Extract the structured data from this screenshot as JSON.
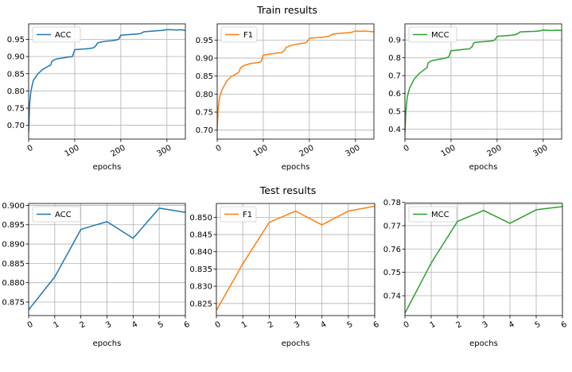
{
  "titles": {
    "train": "Train results",
    "test": "Test results"
  },
  "chart_data": [
    {
      "name": "train-acc",
      "type": "line",
      "series_name": "ACC",
      "color": "#1f77b4",
      "xlabel": "epochs",
      "xlim": [
        0,
        340
      ],
      "ylim": [
        0.66,
        0.995
      ],
      "xticks": [
        0,
        100,
        200,
        300
      ],
      "yticks": [
        0.7,
        0.75,
        0.8,
        0.85,
        0.9,
        0.95
      ],
      "ytick_labels": [
        "0.70",
        "0.75",
        "0.80",
        "0.85",
        "0.90",
        "0.95"
      ],
      "xtick_rotated": true,
      "x": [
        0,
        2,
        5,
        10,
        20,
        30,
        40,
        48,
        50,
        55,
        60,
        70,
        80,
        90,
        95,
        100,
        110,
        120,
        130,
        140,
        145,
        150,
        160,
        170,
        180,
        190,
        195,
        200,
        210,
        220,
        230,
        240,
        245,
        250,
        260,
        270,
        280,
        290,
        295,
        300,
        310,
        320,
        330,
        340
      ],
      "values": [
        0.68,
        0.76,
        0.8,
        0.83,
        0.85,
        0.862,
        0.87,
        0.875,
        0.885,
        0.89,
        0.893,
        0.895,
        0.897,
        0.899,
        0.9,
        0.92,
        0.921,
        0.922,
        0.923,
        0.925,
        0.93,
        0.94,
        0.943,
        0.945,
        0.946,
        0.948,
        0.95,
        0.962,
        0.963,
        0.964,
        0.965,
        0.966,
        0.968,
        0.972,
        0.973,
        0.974,
        0.975,
        0.976,
        0.977,
        0.978,
        0.978,
        0.977,
        0.978,
        0.976
      ]
    },
    {
      "name": "train-f1",
      "type": "line",
      "series_name": "F1",
      "color": "#ff7f0e",
      "xlabel": "epochs",
      "xlim": [
        0,
        340
      ],
      "ylim": [
        0.675,
        0.995
      ],
      "xticks": [
        0,
        100,
        200,
        300
      ],
      "yticks": [
        0.7,
        0.75,
        0.8,
        0.85,
        0.9,
        0.95
      ],
      "ytick_labels": [
        "0.70",
        "0.75",
        "0.80",
        "0.85",
        "0.90",
        "0.95"
      ],
      "xtick_rotated": true,
      "x": [
        0,
        2,
        5,
        10,
        20,
        30,
        40,
        48,
        50,
        55,
        60,
        70,
        80,
        90,
        95,
        100,
        110,
        120,
        130,
        140,
        145,
        150,
        160,
        170,
        180,
        190,
        195,
        200,
        210,
        220,
        230,
        240,
        245,
        250,
        260,
        270,
        280,
        290,
        295,
        300,
        310,
        320,
        330,
        340
      ],
      "values": [
        0.7,
        0.76,
        0.79,
        0.81,
        0.835,
        0.848,
        0.855,
        0.862,
        0.872,
        0.877,
        0.88,
        0.884,
        0.886,
        0.888,
        0.89,
        0.908,
        0.91,
        0.912,
        0.914,
        0.915,
        0.92,
        0.93,
        0.935,
        0.938,
        0.94,
        0.942,
        0.945,
        0.955,
        0.956,
        0.957,
        0.958,
        0.96,
        0.962,
        0.966,
        0.968,
        0.969,
        0.97,
        0.971,
        0.973,
        0.975,
        0.974,
        0.975,
        0.974,
        0.973
      ]
    },
    {
      "name": "train-mcc",
      "type": "line",
      "series_name": "MCC",
      "color": "#2ca02c",
      "xlabel": "epochs",
      "xlim": [
        0,
        340
      ],
      "ylim": [
        0.345,
        0.99
      ],
      "xticks": [
        0,
        100,
        200,
        300
      ],
      "yticks": [
        0.4,
        0.5,
        0.6,
        0.7,
        0.8,
        0.9
      ],
      "ytick_labels": [
        "0.4",
        "0.5",
        "0.6",
        "0.7",
        "0.8",
        "0.9"
      ],
      "xtick_rotated": true,
      "x": [
        0,
        2,
        5,
        10,
        20,
        30,
        40,
        48,
        50,
        55,
        60,
        70,
        80,
        90,
        95,
        100,
        110,
        120,
        130,
        140,
        145,
        150,
        160,
        170,
        180,
        190,
        195,
        200,
        210,
        220,
        230,
        240,
        245,
        250,
        260,
        270,
        280,
        290,
        295,
        300,
        310,
        320,
        330,
        340
      ],
      "values": [
        0.38,
        0.5,
        0.58,
        0.63,
        0.68,
        0.71,
        0.73,
        0.745,
        0.77,
        0.78,
        0.785,
        0.79,
        0.795,
        0.8,
        0.805,
        0.84,
        0.842,
        0.845,
        0.848,
        0.85,
        0.86,
        0.885,
        0.888,
        0.89,
        0.892,
        0.895,
        0.9,
        0.92,
        0.922,
        0.924,
        0.926,
        0.93,
        0.935,
        0.945,
        0.946,
        0.947,
        0.948,
        0.95,
        0.952,
        0.955,
        0.954,
        0.953,
        0.955,
        0.952
      ]
    },
    {
      "name": "test-acc",
      "type": "line",
      "series_name": "ACC",
      "color": "#1f77b4",
      "xlabel": "epochs",
      "xlim": [
        0,
        6
      ],
      "ylim": [
        0.8715,
        0.9005
      ],
      "xticks": [
        0,
        1,
        2,
        3,
        4,
        5,
        6
      ],
      "yticks": [
        0.875,
        0.88,
        0.885,
        0.89,
        0.895,
        0.9
      ],
      "ytick_labels": [
        "0.875",
        "0.880",
        "0.885",
        "0.890",
        "0.895",
        "0.900"
      ],
      "xtick_rotated": true,
      "x": [
        0,
        1,
        2,
        3,
        4,
        5,
        6
      ],
      "values": [
        0.873,
        0.8815,
        0.8938,
        0.8958,
        0.8915,
        0.8993,
        0.8982
      ]
    },
    {
      "name": "test-f1",
      "type": "line",
      "series_name": "F1",
      "color": "#ff7f0e",
      "xlabel": "epochs",
      "xlim": [
        0,
        6
      ],
      "ylim": [
        0.8215,
        0.854
      ],
      "xticks": [
        0,
        1,
        2,
        3,
        4,
        5,
        6
      ],
      "yticks": [
        0.825,
        0.83,
        0.835,
        0.84,
        0.845,
        0.85
      ],
      "ytick_labels": [
        "0.825",
        "0.830",
        "0.835",
        "0.840",
        "0.845",
        "0.850"
      ],
      "xtick_rotated": true,
      "x": [
        0,
        1,
        2,
        3,
        4,
        5,
        6
      ],
      "values": [
        0.823,
        0.8365,
        0.8485,
        0.8518,
        0.8478,
        0.8518,
        0.8532
      ]
    },
    {
      "name": "test-mcc",
      "type": "line",
      "series_name": "MCC",
      "color": "#2ca02c",
      "xlabel": "epochs",
      "xlim": [
        0,
        6
      ],
      "ylim": [
        0.7315,
        0.7795
      ],
      "xticks": [
        0,
        1,
        2,
        3,
        4,
        5,
        6
      ],
      "yticks": [
        0.74,
        0.75,
        0.76,
        0.77,
        0.78
      ],
      "ytick_labels": [
        "0.74",
        "0.75",
        "0.76",
        "0.77",
        "0.78"
      ],
      "xtick_rotated": true,
      "x": [
        0,
        1,
        2,
        3,
        4,
        5,
        6
      ],
      "values": [
        0.7325,
        0.754,
        0.7718,
        0.7765,
        0.771,
        0.7768,
        0.7782
      ]
    }
  ]
}
